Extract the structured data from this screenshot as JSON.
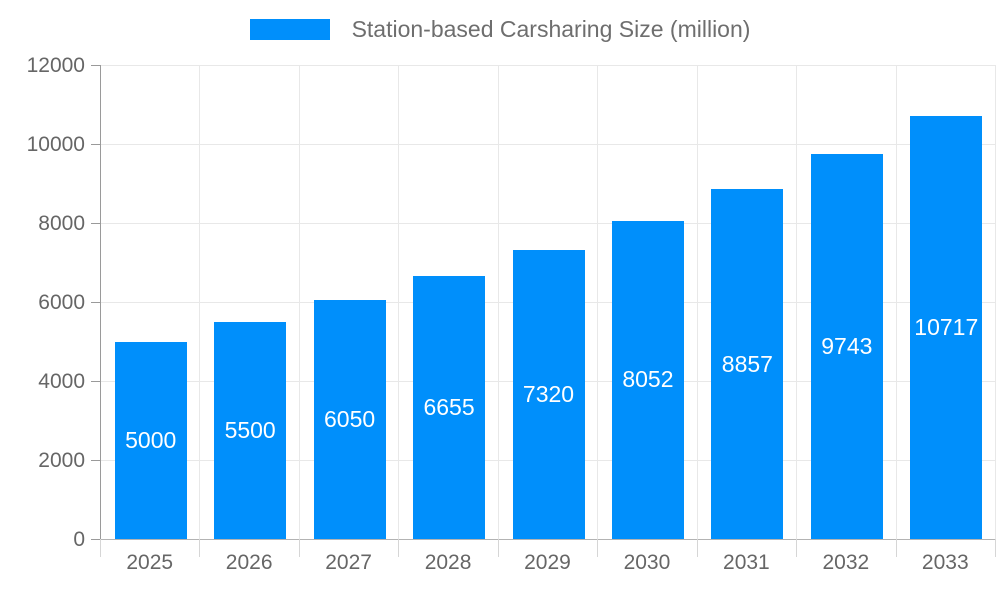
{
  "chart_data": {
    "type": "bar",
    "title": "",
    "categories": [
      "2025",
      "2026",
      "2027",
      "2028",
      "2029",
      "2030",
      "2031",
      "2032",
      "2033"
    ],
    "series": [
      {
        "name": "Station-based Carsharing Size (million)",
        "values": [
          5000,
          5500,
          6050,
          6655,
          7320,
          8052,
          8857,
          9743,
          10717
        ]
      }
    ],
    "xlabel": "",
    "ylabel": "",
    "ylim": [
      0,
      12000
    ],
    "yticks": [
      0,
      2000,
      4000,
      6000,
      8000,
      10000,
      12000
    ],
    "grid": true,
    "legend_position": "top",
    "value_labels": "centered-inside-bars"
  },
  "colors": {
    "bar": "#008FFB",
    "grid": "#e8e8e8",
    "axis": "#9a9a9a",
    "tick_text": "#666666",
    "legend_text": "#6e6e6e",
    "value_label_text": "#ffffff",
    "background": "#ffffff"
  }
}
